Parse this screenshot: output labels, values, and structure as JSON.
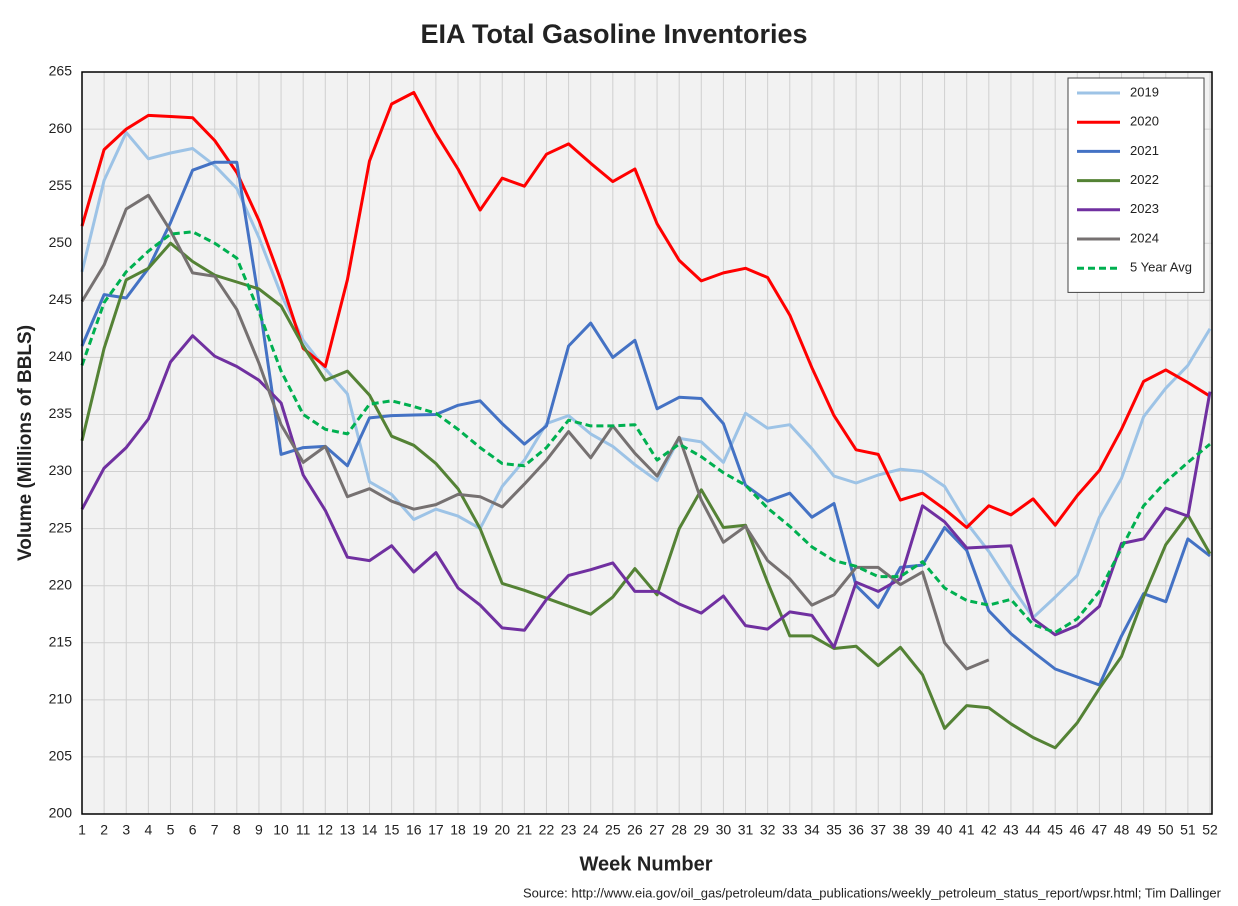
{
  "chart_data": {
    "type": "line",
    "title": "EIA Total Gasoline Inventories",
    "x_label": "Week Number",
    "y_label": "Volume (Millions of BBLS)",
    "source": "Source: http://www.eia.gov/oil_gas/petroleum/data_publications/weekly_petroleum_status_report/wpsr.html; Tim Dallinger",
    "categories": [
      "1",
      "2",
      "3",
      "4",
      "5",
      "6",
      "7",
      "8",
      "9",
      "10",
      "11",
      "12",
      "13",
      "14",
      "15",
      "16",
      "17",
      "18",
      "19",
      "20",
      "21",
      "22",
      "23",
      "24",
      "25",
      "26",
      "27",
      "28",
      "29",
      "30",
      "31",
      "32",
      "33",
      "34",
      "35",
      "36",
      "37",
      "38",
      "39",
      "40",
      "41",
      "42",
      "43",
      "44",
      "45",
      "46",
      "47",
      "48",
      "49",
      "50",
      "51",
      "52"
    ],
    "ylim": [
      200,
      265
    ],
    "yticks": [
      200,
      205,
      210,
      215,
      220,
      225,
      230,
      235,
      240,
      245,
      250,
      255,
      260,
      265
    ],
    "grid": true,
    "legend": "upper right",
    "series": [
      {
        "name": "2019",
        "color": "#9dc3e6",
        "values": [
          247.5,
          255.5,
          259.7,
          257.4,
          257.9,
          258.3,
          256.8,
          254.8,
          250.5,
          245.5,
          241.5,
          239,
          236.8,
          229.1,
          228,
          225.8,
          226.7,
          226.1,
          225,
          228.7,
          231,
          234.2,
          234.9,
          233.3,
          232.2,
          230.6,
          229.2,
          232.9,
          232.6,
          230.8,
          235.1,
          233.8,
          234.1,
          232,
          229.6,
          229,
          229.7,
          230.2,
          230,
          228.7,
          225.5,
          223,
          220,
          217.2,
          219,
          220.9,
          226,
          229.4,
          234.8,
          237.3,
          239.3,
          242.5
        ]
      },
      {
        "name": "2020",
        "color": "#ff0000",
        "values": [
          251.5,
          258.2,
          260,
          261.2,
          261.1,
          261,
          259,
          256.2,
          252,
          246.7,
          240.8,
          239.2,
          246.8,
          257.2,
          262.2,
          263.2,
          259.6,
          256.5,
          252.9,
          255.7,
          255,
          257.8,
          258.7,
          257,
          255.4,
          256.5,
          251.7,
          248.5,
          246.7,
          247.4,
          247.8,
          247,
          243.7,
          239.1,
          234.9,
          231.9,
          231.5,
          227.5,
          228.1,
          226.7,
          225.1,
          227,
          226.2,
          227.6,
          225.3,
          227.9,
          230.1,
          233.7,
          237.9,
          238.9,
          237.8,
          236.6
        ]
      },
      {
        "name": "2021",
        "color": "#4472c4",
        "values": [
          241,
          245.5,
          245.2,
          247.8,
          251.8,
          256.4,
          257.1,
          257.1,
          245,
          231.5,
          232.1,
          232.2,
          230.5,
          234.7,
          234.9,
          234.95,
          235,
          235.8,
          236.2,
          234.2,
          232.4,
          234,
          241,
          243,
          240,
          241.5,
          235.5,
          236.5,
          236.4,
          234.2,
          228.8,
          227.4,
          228.1,
          226,
          227.2,
          220,
          218.1,
          221.6,
          221.8,
          225.1,
          223.1,
          217.8,
          215.8,
          214.2,
          212.7,
          212,
          211.3,
          215.6,
          219.3,
          218.6,
          224.1,
          222.6
        ]
      },
      {
        "name": "2022",
        "color": "#548235",
        "values": [
          232.7,
          240.8,
          246.8,
          247.8,
          250,
          248.4,
          247.2,
          246.6,
          246,
          244.5,
          241,
          238,
          238.8,
          236.7,
          233.1,
          232.3,
          230.7,
          228.5,
          225,
          220.2,
          219.6,
          218.9,
          218.2,
          217.5,
          219,
          221.5,
          219.2,
          225,
          228.4,
          225.1,
          225.3,
          220.3,
          215.6,
          215.6,
          214.5,
          214.7,
          213,
          214.6,
          212.2,
          207.5,
          209.5,
          209.3,
          207.9,
          206.7,
          205.8,
          208,
          211,
          213.8,
          219,
          223.6,
          226.2,
          222.8
        ]
      },
      {
        "name": "2023",
        "color": "#7030a0",
        "values": [
          226.7,
          230.3,
          232.1,
          234.6,
          239.6,
          241.9,
          240.1,
          239.2,
          238,
          236,
          229.7,
          226.6,
          222.5,
          222.2,
          223.5,
          221.2,
          222.9,
          219.8,
          218.3,
          216.3,
          216.1,
          218.8,
          220.9,
          221.4,
          222,
          219.5,
          219.5,
          218.4,
          217.6,
          219.1,
          216.5,
          216.2,
          217.7,
          217.4,
          214.6,
          220.3,
          219.5,
          220.6,
          227,
          225.6,
          223.3,
          223.4,
          223.5,
          217.1,
          215.7,
          216.5,
          218.2,
          223.7,
          224.1,
          226.8,
          226.1,
          237
        ]
      },
      {
        "name": "2024",
        "color": "#767171",
        "values": [
          244.9,
          248.1,
          253,
          254.2,
          251.1,
          247.4,
          247.1,
          244.2,
          239.5,
          234.1,
          230.8,
          232.2,
          227.8,
          228.5,
          227.4,
          226.7,
          227.1,
          228,
          227.8,
          226.9,
          228.9,
          231,
          233.5,
          231.2,
          234,
          231.6,
          229.6,
          233,
          227.5,
          223.8,
          225.2,
          222.2,
          220.6,
          218.3,
          219.2,
          221.6,
          221.6,
          220.1,
          221.2,
          215,
          212.7,
          213.5,
          null,
          null,
          null,
          null,
          null,
          null,
          null,
          null,
          null,
          null
        ]
      },
      {
        "name": "5 Year Avg",
        "color": "#00b050",
        "line_style": "dashed",
        "values": [
          239.3,
          244.8,
          247.5,
          249.3,
          250.8,
          251,
          250,
          248.7,
          244,
          238.8,
          235,
          233.7,
          233.3,
          235.9,
          236.2,
          235.7,
          235.1,
          233.7,
          232.1,
          230.7,
          230.5,
          232.1,
          234.5,
          234,
          234,
          234.1,
          231,
          232.4,
          231.3,
          229.9,
          228.8,
          226.8,
          225.2,
          223.4,
          222.2,
          221.7,
          220.8,
          220.8,
          222.1,
          219.8,
          218.7,
          218.3,
          218.8,
          216.6,
          215.9,
          217.1,
          219.5,
          223.3,
          227,
          229.1,
          230.8,
          232.4
        ]
      }
    ]
  }
}
